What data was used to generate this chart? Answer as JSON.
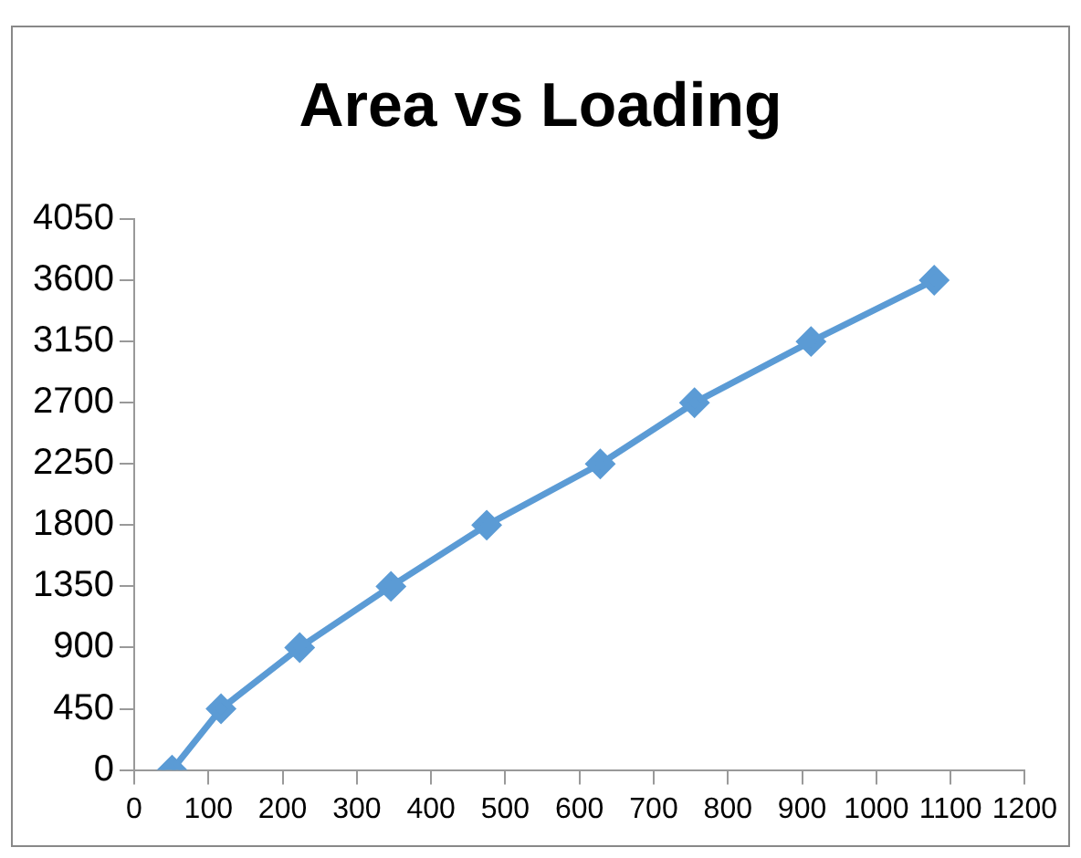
{
  "chart_data": {
    "type": "line",
    "title": "Area vs Loading",
    "x": [
      51,
      117,
      223,
      346,
      475,
      628,
      755,
      912,
      1078
    ],
    "series": [
      {
        "color": "#5b9bd5",
        "values": [
          0,
          450,
          900,
          1350,
          1800,
          2250,
          2700,
          3150,
          3600
        ]
      }
    ],
    "xlim": [
      0,
      1200
    ],
    "xticks": [
      0,
      100,
      200,
      300,
      400,
      500,
      600,
      700,
      800,
      900,
      1000,
      1100,
      1200
    ],
    "ylim": [
      0,
      4050
    ],
    "yticks": [
      0,
      450,
      900,
      1350,
      1800,
      2250,
      2700,
      3150,
      3600,
      4050
    ],
    "grid": false,
    "legend": false,
    "marker": "diamond",
    "line_style": "solid"
  }
}
